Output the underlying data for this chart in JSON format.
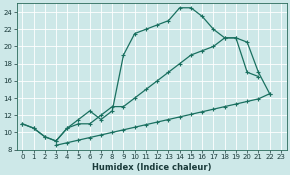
{
  "xlabel": "Humidex (Indice chaleur)",
  "bg_color": "#cde8e8",
  "grid_color": "#b8d4d4",
  "line_color": "#1a7060",
  "markersize": 2.5,
  "linewidth": 0.9,
  "xlim": [
    -0.5,
    23.5
  ],
  "ylim": [
    8,
    25
  ],
  "xticks": [
    0,
    1,
    2,
    3,
    4,
    5,
    6,
    7,
    8,
    9,
    10,
    11,
    12,
    13,
    14,
    15,
    16,
    17,
    18,
    19,
    20,
    21,
    22,
    23
  ],
  "yticks": [
    8,
    10,
    12,
    14,
    16,
    18,
    20,
    22,
    24
  ],
  "xlabel_fontsize": 6,
  "tick_fontsize": 5,
  "series_a_x": [
    0,
    1,
    2,
    3,
    4,
    5,
    6,
    7,
    8,
    9,
    10,
    11,
    12,
    13,
    14,
    15,
    16,
    17,
    18,
    19,
    20,
    21
  ],
  "series_a_y": [
    11,
    10.5,
    9.5,
    9.0,
    10.5,
    11.5,
    12.5,
    11.5,
    12.5,
    19.0,
    21.5,
    22.0,
    22.5,
    23.0,
    24.5,
    24.5,
    23.5,
    22.0,
    21.0,
    21.0,
    17.0,
    16.5
  ],
  "series_b_x": [
    0,
    1,
    2,
    3,
    4,
    5,
    6,
    7,
    8,
    9,
    10,
    11,
    12,
    13,
    14,
    15,
    16,
    17,
    18,
    19,
    20,
    21,
    22
  ],
  "series_b_y": [
    11,
    10.5,
    9.5,
    9.0,
    10.5,
    11.0,
    11.0,
    12.0,
    13.0,
    13.0,
    14.0,
    15.0,
    16.0,
    17.0,
    18.0,
    19.0,
    19.5,
    20.0,
    21.0,
    21.0,
    20.5,
    17.0,
    14.5
  ],
  "series_c_x": [
    3,
    4,
    5,
    6,
    7,
    8,
    9,
    10,
    11,
    12,
    13,
    14,
    15,
    16,
    17,
    18,
    19,
    20,
    21,
    22
  ],
  "series_c_y": [
    8.5,
    8.8,
    9.1,
    9.4,
    9.7,
    10.0,
    10.3,
    10.6,
    10.9,
    11.2,
    11.5,
    11.8,
    12.1,
    12.4,
    12.7,
    13.0,
    13.3,
    13.6,
    13.9,
    14.5
  ]
}
